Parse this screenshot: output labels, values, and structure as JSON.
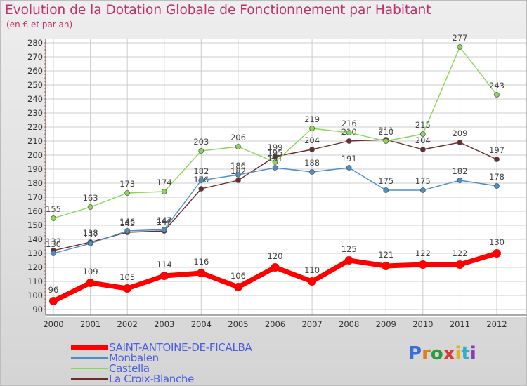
{
  "title": "Evolution de la Dotation Globale de Fonctionnement par Habitant",
  "subtitle": "(en € et par an)",
  "logo_text": "Proxiti",
  "logo_colors": [
    "#3a6fd8",
    "#e07c1e",
    "#2e9a3a",
    "#d83a3a",
    "#e0b41e",
    "#2eb0c8",
    "#8a3ab8"
  ],
  "chart_data": {
    "type": "line",
    "categories": [
      "2000",
      "2001",
      "2002",
      "2003",
      "2004",
      "2005",
      "2006",
      "2007",
      "2008",
      "2009",
      "2010",
      "2011",
      "2012"
    ],
    "ylim": [
      90,
      280
    ],
    "yticks": [
      90,
      100,
      110,
      120,
      130,
      140,
      150,
      160,
      170,
      180,
      190,
      200,
      210,
      220,
      230,
      240,
      250,
      260,
      270,
      280
    ],
    "grid": true,
    "legend_position": "bottom",
    "series": [
      {
        "name": "SAINT-ANTOINE-DE-FICALBA",
        "color": "#ff0000",
        "values": [
          96,
          109,
          105,
          114,
          116,
          106,
          120,
          110,
          125,
          121,
          122,
          122,
          130
        ]
      },
      {
        "name": "Monbalen",
        "color": "#4a90c8",
        "values": [
          130,
          137,
          146,
          147,
          182,
          186,
          191,
          188,
          191,
          175,
          175,
          182,
          178
        ]
      },
      {
        "name": "Castella",
        "color": "#88d858",
        "values": [
          155,
          163,
          173,
          174,
          203,
          206,
          195,
          219,
          216,
          210,
          215,
          277,
          243
        ]
      },
      {
        "name": "La Croix-Blanche",
        "color": "#6e2a2a",
        "values": [
          132,
          138,
          145,
          146,
          176,
          182,
          199,
          204,
          210,
          211,
          204,
          209,
          197
        ]
      }
    ]
  }
}
